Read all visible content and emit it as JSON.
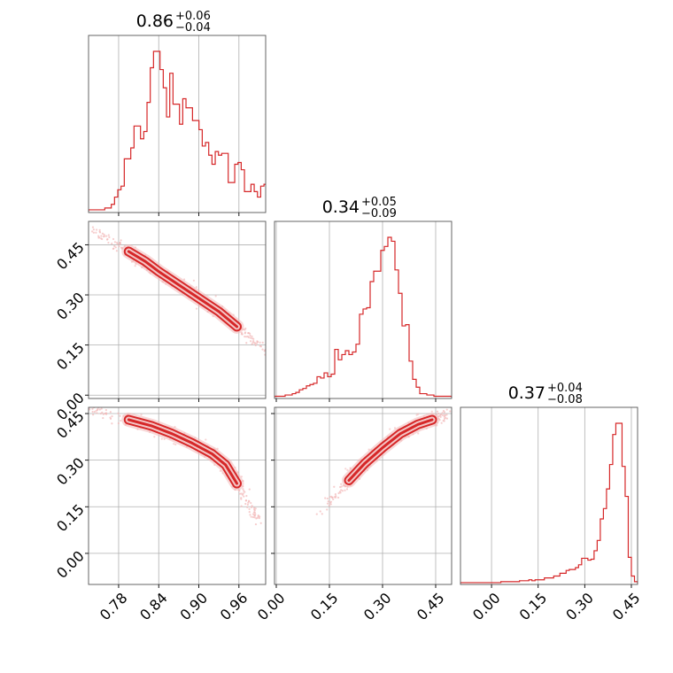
{
  "colors": {
    "accent": "#d62728",
    "scatter": "#f2b8b8",
    "grid": "#b0b0b0",
    "frame": "#555555"
  },
  "chart_data": [
    {
      "panel": "hist-0",
      "type": "histogram",
      "title": {
        "median": "0.86",
        "plus": "+0.06",
        "minus": "−0.04"
      },
      "xlim": [
        0.735,
        1.0
      ],
      "grid": true,
      "ticks": [
        0.78,
        0.84,
        0.9,
        0.96
      ],
      "bins": {
        "start": 0.735,
        "width": 0.00486
      },
      "counts": [
        1,
        1,
        1,
        1,
        1,
        2,
        2,
        4,
        8,
        12,
        14,
        29,
        29,
        35,
        47,
        47,
        40,
        44,
        60,
        79,
        88,
        88,
        78,
        68,
        52,
        76,
        59,
        59,
        48,
        62,
        57,
        57,
        50,
        50,
        45,
        36,
        38,
        31,
        26,
        33,
        31,
        32,
        32,
        16,
        16,
        26,
        27,
        23,
        11,
        11,
        15,
        11,
        8,
        14,
        15,
        11,
        8
      ]
    },
    {
      "panel": "hist-1",
      "type": "histogram",
      "title": {
        "median": "0.34",
        "plus": "+0.05",
        "minus": "−0.09"
      },
      "xlim": [
        -0.005,
        0.495
      ],
      "grid": true,
      "ticks": [
        0.0,
        0.15,
        0.3,
        0.45
      ],
      "bins": {
        "start": -0.005,
        "width": 0.01
      },
      "counts": [
        1,
        1,
        1,
        2,
        2,
        3,
        4,
        6,
        7,
        9,
        10,
        11,
        16,
        15,
        19,
        16,
        18,
        37,
        29,
        33,
        36,
        33,
        35,
        41,
        64,
        68,
        69,
        89,
        97,
        97,
        113,
        116,
        123,
        120,
        98,
        80,
        55,
        56,
        28,
        14,
        8,
        3,
        3,
        2,
        2,
        1,
        1,
        1,
        1,
        1
      ]
    },
    {
      "panel": "hist-2",
      "type": "histogram",
      "title": {
        "median": "0.37",
        "plus": "+0.04",
        "minus": "−0.08"
      },
      "xlim": [
        -0.1,
        0.47
      ],
      "grid": true,
      "ticks": [
        0.0,
        0.15,
        0.3,
        0.45
      ],
      "bins": {
        "start": -0.1,
        "width": 0.01
      },
      "counts": [
        1,
        1,
        1,
        1,
        1,
        1,
        1,
        1,
        1,
        1,
        1,
        1,
        1,
        2,
        2,
        2,
        2,
        2,
        2,
        3,
        3,
        3,
        4,
        3,
        4,
        4,
        4,
        6,
        6,
        6,
        8,
        8,
        11,
        11,
        14,
        15,
        15,
        17,
        20,
        27,
        27,
        25,
        26,
        35,
        46,
        69,
        80,
        101,
        127,
        159,
        171,
        171,
        125,
        93,
        28,
        8,
        2
      ]
    },
    {
      "panel": "contour-1-0",
      "type": "scatter",
      "xlim": [
        0.735,
        1.0
      ],
      "ylim": [
        -0.01,
        0.52
      ],
      "grid": true,
      "xticks": [
        0.78,
        0.84,
        0.9,
        0.96
      ],
      "yticks": [
        0.0,
        0.15,
        0.3,
        0.45
      ],
      "ytick_labels": [
        "0.00",
        "0.15",
        "0.30",
        "0.45"
      ],
      "ridge": [
        [
          0.795,
          0.43
        ],
        [
          0.82,
          0.4
        ],
        [
          0.84,
          0.37
        ],
        [
          0.87,
          0.33
        ],
        [
          0.9,
          0.29
        ],
        [
          0.93,
          0.25
        ],
        [
          0.957,
          0.205
        ]
      ]
    },
    {
      "panel": "contour-2-0",
      "type": "scatter",
      "xlim": [
        0.735,
        1.0
      ],
      "ylim": [
        -0.1,
        0.47
      ],
      "grid": true,
      "xticks": [
        0.78,
        0.84,
        0.9,
        0.96
      ],
      "yticks": [
        0.0,
        0.15,
        0.3,
        0.45
      ],
      "ytick_labels": [
        "0.00",
        "0.15",
        "0.30",
        "0.45"
      ],
      "xtick_labels": [
        "0.78",
        "0.84",
        "0.90",
        "0.96"
      ],
      "ridge": [
        [
          0.795,
          0.43
        ],
        [
          0.83,
          0.41
        ],
        [
          0.86,
          0.385
        ],
        [
          0.89,
          0.355
        ],
        [
          0.92,
          0.32
        ],
        [
          0.94,
          0.285
        ],
        [
          0.957,
          0.225
        ]
      ]
    },
    {
      "panel": "contour-2-1",
      "type": "scatter",
      "xlim": [
        -0.005,
        0.495
      ],
      "ylim": [
        -0.1,
        0.47
      ],
      "grid": true,
      "xticks": [
        0.0,
        0.15,
        0.3,
        0.45
      ],
      "yticks": [
        0.0,
        0.15,
        0.3,
        0.45
      ],
      "xtick_labels": [
        "0.00",
        "0.15",
        "0.30",
        "0.45"
      ],
      "ridge": [
        [
          0.205,
          0.235
        ],
        [
          0.25,
          0.29
        ],
        [
          0.3,
          0.34
        ],
        [
          0.35,
          0.385
        ],
        [
          0.4,
          0.415
        ],
        [
          0.44,
          0.43
        ]
      ]
    }
  ],
  "bottom_tick_labels_hist2": [
    "0.00",
    "0.15",
    "0.30",
    "0.45"
  ]
}
